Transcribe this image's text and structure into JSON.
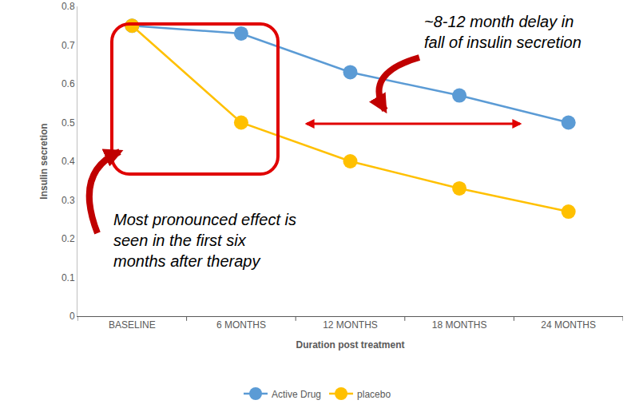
{
  "chart_data": {
    "type": "line",
    "x_label": "Duration post treatment",
    "y_label": "Insulin secretion",
    "categories": [
      "BASELINE",
      "6 MONTHS",
      "12 MONTHS",
      "18 MONTHS",
      "24 MONTHS"
    ],
    "series": [
      {
        "name": "Active Drug",
        "color": "#5B9BD5",
        "values": [
          0.75,
          0.73,
          0.63,
          0.57,
          0.5
        ]
      },
      {
        "name": "placebo",
        "color": "#FFC000",
        "values": [
          0.75,
          0.5,
          0.4,
          0.33,
          0.27
        ]
      }
    ],
    "ylim": [
      0,
      0.8
    ],
    "yticks": [
      0,
      0.1,
      0.2,
      0.3,
      0.4,
      0.5,
      0.6,
      0.7,
      0.8
    ],
    "grid": false,
    "legend": "bottom",
    "marker": "circle",
    "annotations": [
      [
        "~8-12 month delay in",
        "fall of insulin secretion"
      ],
      [
        "Most pronounced effect is",
        "seen in the first six",
        "months after therapy"
      ]
    ]
  }
}
